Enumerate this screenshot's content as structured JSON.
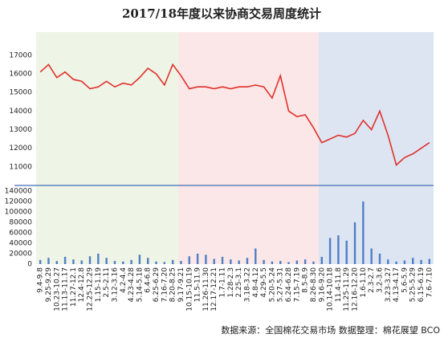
{
  "chart_data": [
    {
      "type": "line",
      "title": "2017/18年度以来协商交易周度统计",
      "series": [
        {
          "color": "#e0312b",
          "values": [
            16100,
            16500,
            15800,
            16100,
            15700,
            15600,
            15200,
            15300,
            15600,
            15300,
            15500,
            15400,
            15800,
            16300,
            16000,
            15400,
            16500,
            15900,
            15200,
            15300,
            15300,
            15200,
            15300,
            15200,
            15300,
            15300,
            15400,
            15300,
            14700,
            15900,
            14000,
            13700,
            13800,
            13100,
            12300,
            12500,
            12700,
            12600,
            12800,
            13500,
            13000,
            14000,
            12700,
            11100,
            11500,
            11700,
            12000,
            12300
          ]
        }
      ],
      "ylim": [
        10000,
        17900
      ],
      "yticks": [
        11000,
        12000,
        13000,
        14000,
        15000,
        16000,
        17000
      ]
    },
    {
      "type": "bar",
      "categories": [
        "9.4-9.8",
        "9.25-9.29",
        "10.23-10.27",
        "11.13-11.17",
        "11.27-12.1",
        "12.4-12.8",
        "12.25-12.29",
        "1.15-1.19",
        "2.5-2.11",
        "3.12-3.16",
        "4.2-4.4",
        "4.23-4.28",
        "5.14-5.18",
        "6.4-6.8",
        "6.25-6.29",
        "7.16-7.20",
        "8.20-8.25",
        "9.17-9.21",
        "10.15-10.19",
        "11.5-11.9",
        "11.26-11.30",
        "12.17-12.21",
        "1.7-1.11",
        "1.28-2.3",
        "2.25-3.1",
        "3.18-3.22",
        "4.8-4.12",
        "4.29-5.5",
        "5.20-5.24",
        "5.27-5.31",
        "6.24-6.28",
        "7.15-7.19",
        "8.5-8.9",
        "8.26-8.30",
        "9.16-9.20",
        "10.14-10.18",
        "11.4-11.8",
        "11.25-11.29",
        "12.16-12.20",
        "1.6-1.10",
        "2.3-2.7",
        "3.2-3.6",
        "3.23-3.27",
        "4.13-4.17",
        "5.6-5.9",
        "5.25-5.29",
        "6.15-6.19",
        "7.6-7.10"
      ],
      "values": [
        8000,
        12000,
        6000,
        14000,
        9000,
        7000,
        15000,
        20000,
        12000,
        6000,
        5000,
        8000,
        18000,
        12000,
        5000,
        4000,
        8000,
        6000,
        15000,
        20000,
        18000,
        10000,
        14000,
        9000,
        7000,
        12000,
        30000,
        8000,
        5000,
        6000,
        4000,
        7000,
        9000,
        5000,
        14000,
        50000,
        55000,
        45000,
        80000,
        120000,
        30000,
        20000,
        9000,
        5000,
        7000,
        12000,
        8000,
        10000
      ],
      "color": "#4f7fc4",
      "ylim": [
        0,
        149000
      ],
      "yticks": [
        0,
        20000,
        40000,
        60000,
        80000,
        100000,
        120000,
        140000
      ],
      "note": "数据来源：全国棉花交易市场    数据整理：棉花展望  BCO"
    }
  ]
}
